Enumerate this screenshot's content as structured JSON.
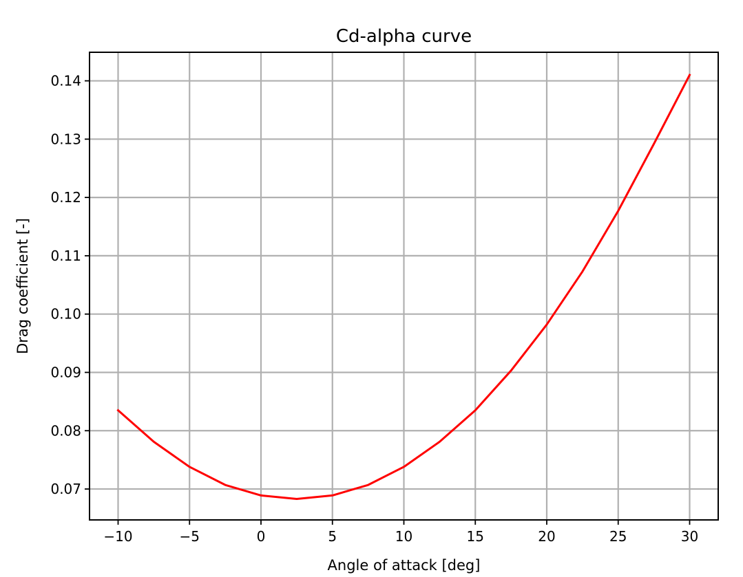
{
  "chart_data": {
    "type": "line",
    "title": "Cd-alpha curve",
    "xlabel": "Angle of attack [deg]",
    "ylabel": "Drag coefficient [-]",
    "xlim": [
      -12,
      32
    ],
    "ylim": [
      0.0647,
      0.1449
    ],
    "grid": true,
    "x_ticks": [
      -10,
      -5,
      0,
      5,
      10,
      15,
      20,
      25,
      30
    ],
    "x_tick_labels": [
      "−10",
      "−5",
      "0",
      "5",
      "10",
      "15",
      "20",
      "25",
      "30"
    ],
    "y_ticks": [
      0.07,
      0.08,
      0.09,
      0.1,
      0.11,
      0.12,
      0.13,
      0.14
    ],
    "y_tick_labels": [
      "0.07",
      "0.08",
      "0.09",
      "0.10",
      "0.11",
      "0.12",
      "0.13",
      "0.14"
    ],
    "series": [
      {
        "color": "#ff0000",
        "x": [
          -10,
          -7.5,
          -5,
          -2.5,
          0,
          2.5,
          5,
          7.5,
          10,
          12.5,
          15,
          17.5,
          20,
          22.5,
          25,
          27.5,
          30
        ],
        "y": [
          0.0835,
          0.0781,
          0.0738,
          0.0707,
          0.0689,
          0.0683,
          0.0689,
          0.0707,
          0.0738,
          0.0781,
          0.0835,
          0.0903,
          0.0982,
          0.1073,
          0.1177,
          0.1292,
          0.141
        ]
      }
    ]
  }
}
